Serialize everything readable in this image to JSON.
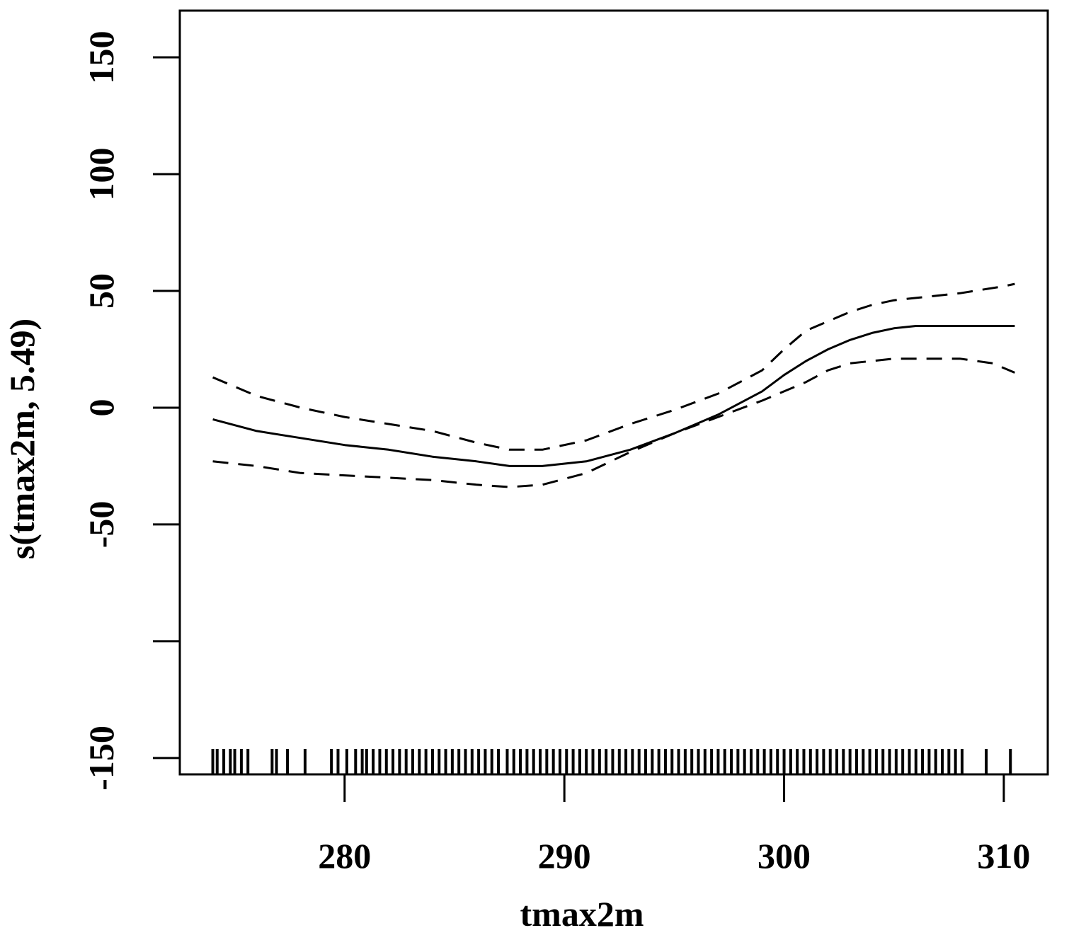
{
  "chart_data": {
    "type": "line",
    "title": "",
    "xlabel": "tmax2m",
    "ylabel": "s(tmax2m, 5.49)",
    "xlim": [
      272.5,
      312
    ],
    "ylim": [
      -157,
      170
    ],
    "x_ticks": [
      280,
      290,
      300,
      310
    ],
    "x_tick_labels": [
      "280",
      "290",
      "300",
      "310"
    ],
    "y_ticks": [
      -150,
      -100,
      -50,
      0,
      50,
      100,
      150
    ],
    "y_tick_labels": [
      "-150",
      "",
      "-50",
      "0",
      "50",
      "100",
      "150"
    ],
    "grid": false,
    "legend": "none",
    "series": [
      {
        "style": "solid",
        "x": [
          274,
          276,
          278,
          280,
          282,
          284,
          286,
          287.5,
          289,
          291,
          293,
          295,
          297,
          299,
          300,
          301,
          302,
          303,
          304,
          305,
          306,
          308,
          310.5
        ],
        "y": [
          -5,
          -10,
          -13,
          -16,
          -18,
          -21,
          -23,
          -25,
          -25,
          -23,
          -18,
          -11,
          -3,
          7,
          14,
          20,
          25,
          29,
          32,
          34,
          35,
          35,
          35
        ]
      },
      {
        "style": "dashed",
        "x": [
          274,
          276,
          278,
          280,
          282,
          284,
          286,
          287.5,
          289,
          291,
          293,
          295,
          297,
          299,
          300,
          301,
          302,
          303,
          304,
          305,
          306,
          308,
          310,
          310.5
        ],
        "y": [
          13,
          5,
          0,
          -4,
          -7,
          -10,
          -15,
          -18,
          -18,
          -14,
          -7,
          -1,
          6,
          16,
          25,
          33,
          37,
          41,
          44,
          46,
          47,
          49,
          52,
          53
        ]
      },
      {
        "style": "dashed",
        "x": [
          274,
          276,
          278,
          280,
          282,
          284,
          286,
          287.5,
          289,
          291,
          293,
          295,
          297,
          299,
          300,
          301,
          302,
          303,
          304,
          305,
          306,
          308,
          309.5,
          310.5
        ],
        "y": [
          -23,
          -25,
          -28,
          -29,
          -30,
          -31,
          -33,
          -34,
          -33,
          -28,
          -19,
          -11,
          -4,
          3,
          7,
          11,
          16,
          19,
          20,
          21,
          21,
          21,
          19,
          15
        ]
      }
    ],
    "rug": [
      274,
      274.2,
      274.5,
      274.8,
      275.0,
      275.3,
      275.6,
      276.7,
      276.9,
      277.4,
      278.2,
      279.4,
      279.7,
      280.1,
      280.5,
      280.8,
      281.0,
      281.3,
      281.6,
      281.9,
      282.2,
      282.5,
      282.8,
      283.1,
      283.4,
      283.7,
      284.0,
      284.3,
      284.6,
      284.9,
      285.2,
      285.5,
      285.8,
      286.1,
      286.4,
      286.7,
      287.0,
      287.4,
      287.7,
      288.0,
      288.3,
      288.6,
      288.9,
      289.2,
      289.5,
      289.8,
      290.1,
      290.4,
      290.7,
      291.0,
      291.3,
      291.6,
      291.9,
      292.2,
      292.5,
      292.8,
      293.1,
      293.4,
      293.7,
      294.0,
      294.3,
      294.6,
      294.9,
      295.2,
      295.5,
      295.8,
      296.1,
      296.4,
      296.7,
      297.0,
      297.3,
      297.6,
      297.9,
      298.2,
      298.5,
      298.8,
      299.1,
      299.4,
      299.7,
      300.0,
      300.3,
      300.6,
      300.9,
      301.2,
      301.5,
      301.8,
      302.1,
      302.4,
      302.7,
      303.0,
      303.3,
      303.6,
      303.9,
      304.2,
      304.5,
      304.8,
      305.1,
      305.4,
      305.7,
      306.0,
      306.3,
      306.6,
      306.9,
      307.2,
      307.5,
      307.8,
      308.1,
      309.2,
      310.3
    ]
  }
}
